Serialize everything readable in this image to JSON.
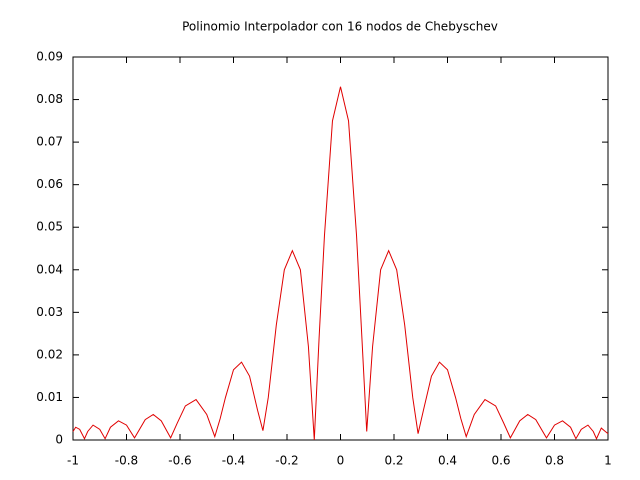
{
  "chart_data": {
    "type": "line",
    "title": "Polinomio Interpolador con 16 nodos de Chebyschev",
    "x": [
      -1.0,
      -0.99,
      -0.975,
      -0.957,
      -0.945,
      -0.925,
      -0.9,
      -0.88,
      -0.86,
      -0.83,
      -0.8,
      -0.77,
      -0.73,
      -0.7,
      -0.67,
      -0.635,
      -0.61,
      -0.58,
      -0.54,
      -0.5,
      -0.47,
      -0.45,
      -0.43,
      -0.4,
      -0.37,
      -0.34,
      -0.31,
      -0.29,
      -0.27,
      -0.24,
      -0.21,
      -0.18,
      -0.15,
      -0.12,
      -0.098,
      -0.08,
      -0.06,
      -0.03,
      0.0,
      0.03,
      0.06,
      0.08,
      0.098,
      0.12,
      0.15,
      0.18,
      0.21,
      0.24,
      0.27,
      0.29,
      0.31,
      0.34,
      0.37,
      0.4,
      0.43,
      0.45,
      0.47,
      0.5,
      0.54,
      0.58,
      0.61,
      0.635,
      0.67,
      0.7,
      0.73,
      0.77,
      0.8,
      0.83,
      0.86,
      0.88,
      0.9,
      0.925,
      0.945,
      0.957,
      0.975,
      0.99,
      1.0
    ],
    "series": [
      {
        "color": "#e00000",
        "values": [
          0.002,
          0.003,
          0.0025,
          0.0003,
          0.002,
          0.0035,
          0.0025,
          0.0003,
          0.003,
          0.0045,
          0.0035,
          0.0005,
          0.0048,
          0.006,
          0.0045,
          0.0005,
          0.004,
          0.008,
          0.0095,
          0.006,
          0.0008,
          0.005,
          0.01,
          0.0165,
          0.0183,
          0.015,
          0.007,
          0.0022,
          0.01,
          0.027,
          0.04,
          0.0445,
          0.04,
          0.022,
          0.0,
          0.024,
          0.048,
          0.075,
          0.083,
          0.075,
          0.048,
          0.024,
          0.002,
          0.022,
          0.04,
          0.0445,
          0.04,
          0.027,
          0.01,
          0.0015,
          0.007,
          0.015,
          0.0183,
          0.0165,
          0.01,
          0.005,
          0.0008,
          0.006,
          0.0095,
          0.008,
          0.004,
          0.0005,
          0.0045,
          0.006,
          0.0048,
          0.0005,
          0.0035,
          0.0045,
          0.003,
          0.0003,
          0.0025,
          0.0035,
          0.002,
          0.0003,
          0.0028,
          0.002,
          0.0015
        ]
      }
    ],
    "xlim": [
      -1,
      1
    ],
    "ylim": [
      0,
      0.09
    ],
    "xticks": [
      -1,
      -0.8,
      -0.6,
      -0.4,
      -0.2,
      0,
      0.2,
      0.4,
      0.6,
      0.8,
      1
    ],
    "yticks": [
      0,
      0.01,
      0.02,
      0.03,
      0.04,
      0.05,
      0.06,
      0.07,
      0.08,
      0.09
    ],
    "grid": false
  }
}
